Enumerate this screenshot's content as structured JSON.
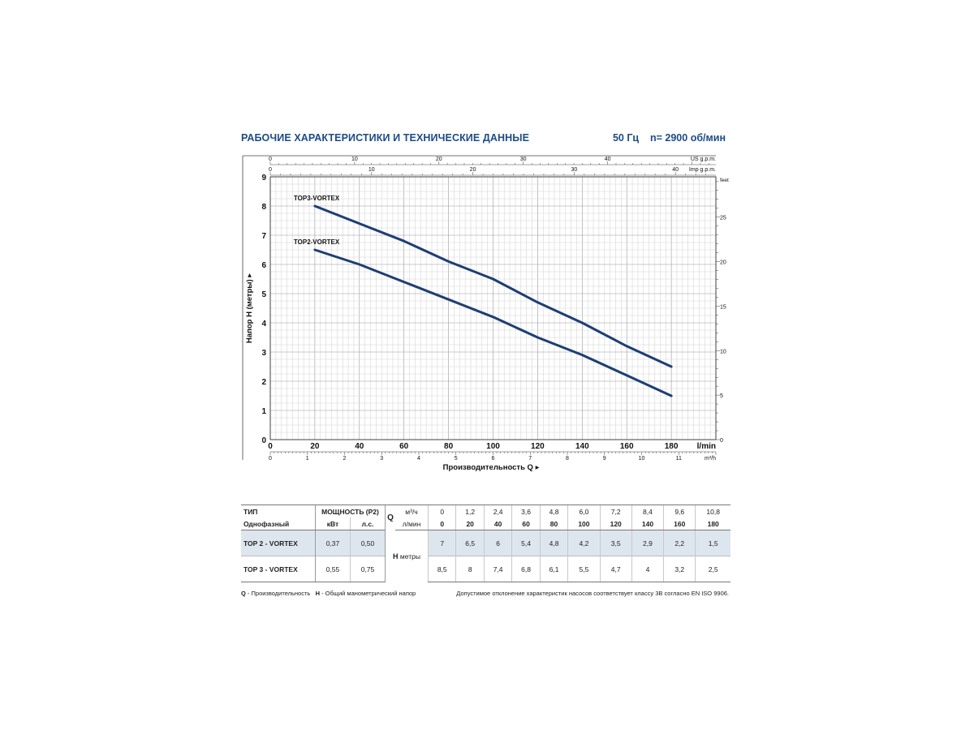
{
  "header": {
    "title": "РАБОЧИЕ ХАРАКТЕРИСТИКИ И ТЕХНИЧЕСКИЕ ДАННЫЕ",
    "freq": "50 Гц",
    "speed": "n= 2900 об/мин"
  },
  "chart_data": {
    "type": "line",
    "xlabel": "Производительность Q",
    "ylabel": "Напор H (метры)",
    "x_unit": "l/min",
    "xlim": [
      0,
      200
    ],
    "ylim": [
      0,
      9
    ],
    "grid": true,
    "x_ticks": [
      0,
      20,
      40,
      60,
      80,
      100,
      120,
      140,
      160,
      180
    ],
    "y_ticks": [
      0,
      1,
      2,
      3,
      4,
      5,
      6,
      7,
      8,
      9
    ],
    "secondary_axes": {
      "us_gpm": {
        "label": "US g.p.m.",
        "ticks": [
          0,
          10,
          20,
          30,
          40
        ]
      },
      "imp_gpm": {
        "label": "Imp g.p.m.",
        "ticks": [
          0,
          10,
          20,
          30,
          40
        ]
      },
      "m3h": {
        "label": "m³/h",
        "ticks": [
          0,
          1,
          2,
          3,
          4,
          5,
          6,
          7,
          8,
          9,
          10,
          11
        ]
      },
      "feet": {
        "label": "feet",
        "ticks": [
          0,
          5,
          10,
          15,
          20,
          25
        ]
      }
    },
    "series": [
      {
        "name": "TOP3-VORTEX",
        "x": [
          20,
          40,
          60,
          80,
          100,
          120,
          140,
          160,
          180
        ],
        "values": [
          8,
          7.4,
          6.8,
          6.1,
          5.5,
          4.7,
          4,
          3.2,
          2.5
        ]
      },
      {
        "name": "TOP2-VORTEX",
        "x": [
          20,
          40,
          60,
          80,
          100,
          120,
          140,
          160,
          180
        ],
        "values": [
          6.5,
          6,
          5.4,
          4.8,
          4.2,
          3.5,
          2.9,
          2.2,
          1.5
        ]
      }
    ],
    "line_color": "#1d3e74"
  },
  "table": {
    "type_label": "ТИП",
    "phase_label": "Однофазный",
    "power_label": "МОЩНОСТЬ (P2)",
    "kw_label": "кВт",
    "hp_label": "л.с.",
    "q_label": "Q",
    "m3h_unit": "м³/ч",
    "lmin_unit": "л/мин",
    "h_label": "H",
    "h_unit": "метры",
    "q_m3h": [
      "0",
      "1,2",
      "2,4",
      "3,6",
      "4,8",
      "6,0",
      "7,2",
      "8,4",
      "9,6",
      "10,8"
    ],
    "q_lmin": [
      "0",
      "20",
      "40",
      "60",
      "80",
      "100",
      "120",
      "140",
      "160",
      "180"
    ],
    "rows": [
      {
        "model": "TOP 2 - VORTEX",
        "kw": "0,37",
        "hp": "0,50",
        "h": [
          "7",
          "6,5",
          "6",
          "5,4",
          "4,8",
          "4,2",
          "3,5",
          "2,9",
          "2,2",
          "1,5"
        ]
      },
      {
        "model": "TOP 3 - VORTEX",
        "kw": "0,55",
        "hp": "0,75",
        "h": [
          "8,5",
          "8",
          "7,4",
          "6,8",
          "6,1",
          "5,5",
          "4,7",
          "4",
          "3,2",
          "2,5"
        ]
      }
    ]
  },
  "footer": {
    "q_abbr": "Q",
    "q_desc": " - Производительность",
    "h_abbr": "H",
    "h_desc": " - Общий манометрический напор",
    "tolerance": "Допустимое отклонение характеристик насосов соответствует классу 3B согласно EN ISO 9906."
  }
}
